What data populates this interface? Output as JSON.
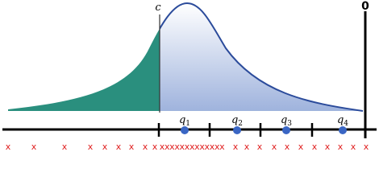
{
  "threshold_label": "c",
  "zero_label": "0",
  "quantiles": [
    {
      "symbol": "q",
      "sub": "1"
    },
    {
      "symbol": "q",
      "sub": "2"
    },
    {
      "symbol": "q",
      "sub": "3"
    },
    {
      "symbol": "q",
      "sub": "4"
    }
  ],
  "sample_marker": "x"
}
